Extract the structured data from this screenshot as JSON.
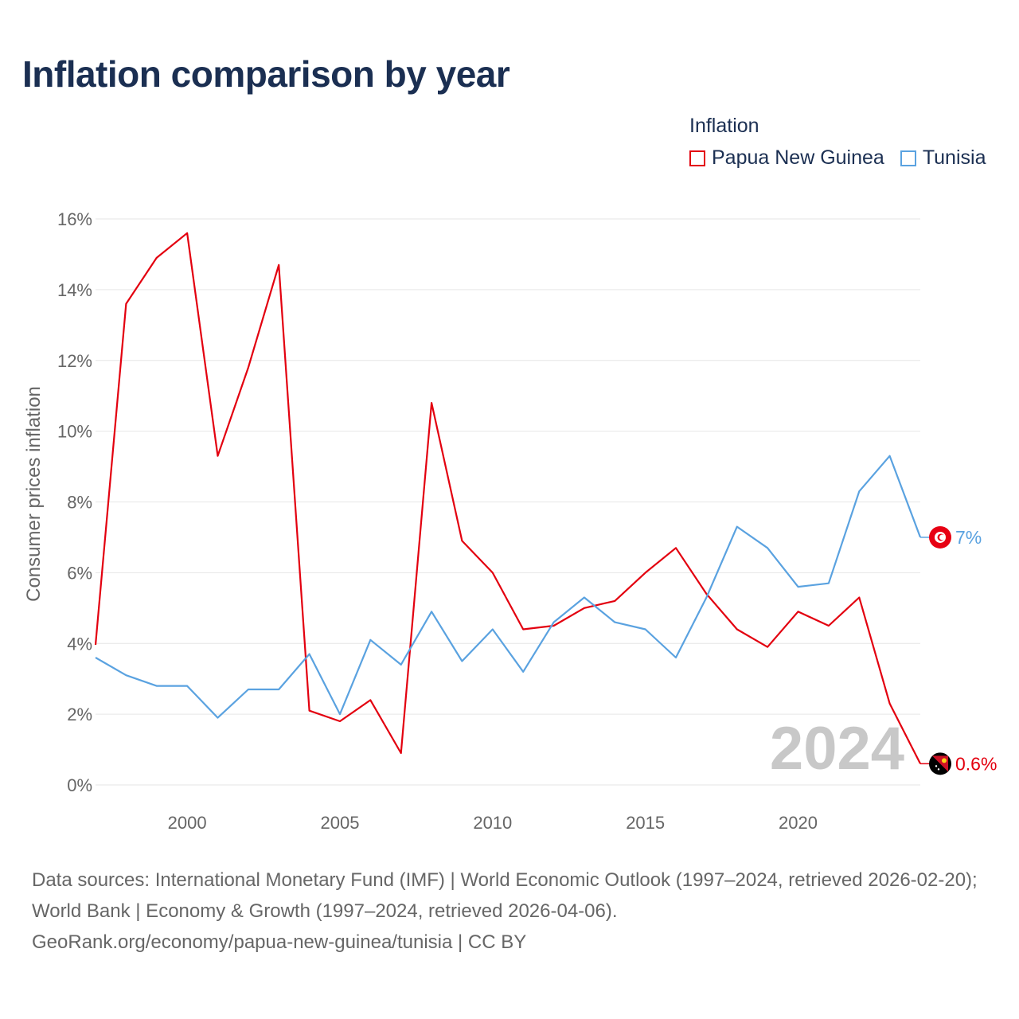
{
  "title": "Inflation comparison by year",
  "legend": {
    "title": "Inflation",
    "items": [
      {
        "label": "Papua New Guinea",
        "color": "#e3000f"
      },
      {
        "label": "Tunisia",
        "color": "#5aa2e0"
      }
    ]
  },
  "chart_data": {
    "type": "line",
    "title": "Inflation comparison by year",
    "xlabel": "",
    "ylabel": "Consumer prices inflation",
    "x": [
      1997,
      1998,
      1999,
      2000,
      2001,
      2002,
      2003,
      2004,
      2005,
      2006,
      2007,
      2008,
      2009,
      2010,
      2011,
      2012,
      2013,
      2014,
      2015,
      2016,
      2017,
      2018,
      2019,
      2020,
      2021,
      2022,
      2023,
      2024
    ],
    "xlim": [
      1997,
      2024
    ],
    "ylim": [
      0,
      16
    ],
    "xticks": [
      2000,
      2005,
      2010,
      2015,
      2020
    ],
    "yticks": [
      0,
      2,
      4,
      6,
      8,
      10,
      12,
      14,
      16
    ],
    "ytick_labels": [
      "0%",
      "2%",
      "4%",
      "6%",
      "8%",
      "10%",
      "12%",
      "14%",
      "16%"
    ],
    "grid": true,
    "series": [
      {
        "name": "Papua New Guinea",
        "color": "#e3000f",
        "values": [
          3.96,
          13.6,
          14.9,
          15.6,
          9.3,
          11.8,
          14.7,
          2.1,
          1.8,
          2.4,
          0.9,
          10.8,
          6.9,
          6.0,
          4.4,
          4.5,
          5.0,
          5.2,
          6.0,
          6.7,
          5.4,
          4.4,
          3.9,
          4.9,
          4.5,
          5.3,
          2.3,
          0.6
        ]
      },
      {
        "name": "Tunisia",
        "color": "#5aa2e0",
        "values": [
          3.6,
          3.1,
          2.8,
          2.8,
          1.9,
          2.7,
          2.7,
          3.7,
          2.0,
          4.1,
          3.4,
          4.9,
          3.5,
          4.4,
          3.2,
          4.6,
          5.3,
          4.6,
          4.4,
          3.6,
          5.3,
          7.3,
          6.7,
          5.6,
          5.7,
          8.3,
          9.3,
          7.0
        ]
      }
    ],
    "end_labels": [
      {
        "series": "Tunisia",
        "text": "7%",
        "flag": "tunisia-flag-icon"
      },
      {
        "series": "Papua New Guinea",
        "text": "0.6%",
        "flag": "papua-new-guinea-flag-icon"
      }
    ],
    "year_watermark": "2024"
  },
  "footer": {
    "line1": "Data sources: International Monetary Fund (IMF) | World Economic Outlook (1997–2024, retrieved 2026-02-20); World Bank | Economy & Growth (1997–2024, retrieved 2026-04-06).",
    "line2": "GeoRank.org/economy/papua-new-guinea/tunisia | CC BY"
  }
}
